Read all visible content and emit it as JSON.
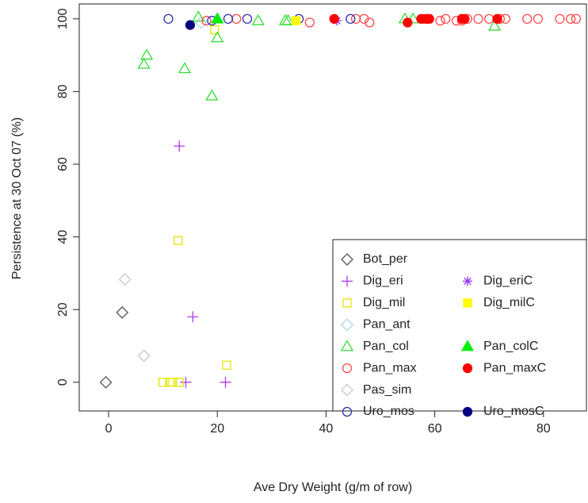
{
  "chart_data": {
    "type": "scatter",
    "xlabel": "Ave Dry Weight (g/m of row)",
    "ylabel": "Persistence at 30 Oct 07 (%)",
    "xlim": [
      -5.4,
      87.9
    ],
    "ylim": [
      -7.9,
      104.1
    ],
    "xticks": [
      0,
      20,
      40,
      60,
      80
    ],
    "yticks": [
      0,
      20,
      40,
      60,
      80,
      100
    ],
    "legend": "bottom-right",
    "series": [
      {
        "name": "Bot_per",
        "color": "#555555",
        "marker": "diamond",
        "x": [
          -0.5,
          2.5
        ],
        "values": [
          0,
          19.2
        ]
      },
      {
        "name": "Dig_eri",
        "color": "#b03ae8",
        "marker": "plus",
        "x": [
          13,
          15.5,
          14.2,
          21.5
        ],
        "values": [
          65,
          18,
          0,
          0
        ]
      },
      {
        "name": "Dig_mil",
        "color": "#e6e600",
        "marker": "square",
        "x": [
          12.8,
          21.7,
          10,
          11.2,
          11.8,
          13,
          19.5
        ],
        "values": [
          39,
          4.7,
          0,
          0,
          0,
          0,
          97
        ]
      },
      {
        "name": "Pan_ant",
        "color": "#a8d8ea",
        "marker": "diamond",
        "x": [
          17
        ],
        "values": [
          99
        ]
      },
      {
        "name": "Pan_col",
        "color": "#33dd33",
        "marker": "triangle",
        "x": [
          6.5,
          7,
          14,
          19,
          20,
          16.5,
          20,
          27.5,
          32.5,
          33,
          54.5,
          71,
          56
        ],
        "values": [
          87.5,
          90,
          86.3,
          78.8,
          94.8,
          100.5,
          100,
          99.5,
          99.5,
          99.5,
          100,
          98,
          100
        ]
      },
      {
        "name": "Pan_max",
        "color": "#ff4a4a",
        "marker": "circle",
        "x": [
          23.5,
          37,
          45.5,
          47,
          48,
          58,
          61,
          62,
          64,
          66,
          68,
          70,
          72,
          73,
          77,
          79,
          83,
          85,
          86,
          65,
          18
        ],
        "values": [
          100,
          99,
          100,
          100,
          99,
          100,
          99.5,
          100,
          99.5,
          100,
          100,
          100,
          100,
          100,
          100,
          100,
          100,
          100,
          100,
          99.5,
          99.5
        ]
      },
      {
        "name": "Pas_sim",
        "color": "#c8c8c8",
        "marker": "diamond",
        "x": [
          3,
          6.5
        ],
        "values": [
          28.3,
          7.3
        ]
      },
      {
        "name": "Uro_mos",
        "color": "#3030b0",
        "marker": "circle",
        "x": [
          11,
          19,
          22,
          25.5,
          35,
          44.5
        ],
        "values": [
          100,
          99.5,
          100,
          100,
          100,
          100
        ]
      },
      {
        "name": "Dig_eriC",
        "color": "#9933ff",
        "marker": "star",
        "x": [
          42
        ],
        "values": [
          99.5
        ]
      },
      {
        "name": "Dig_milC",
        "color": "#ffff00",
        "marker": "square-filled",
        "x": [
          34.5
        ],
        "values": [
          99.5
        ]
      },
      {
        "name": "Pan_colC",
        "color": "#00ee00",
        "marker": "triangle-filled",
        "x": [
          20
        ],
        "values": [
          100
        ]
      },
      {
        "name": "Pan_maxC",
        "color": "#ff0000",
        "marker": "circle-filled",
        "x": [
          41.5,
          55,
          57.5,
          58.5,
          59,
          65,
          65.5,
          71.5
        ],
        "values": [
          100,
          99,
          100,
          100,
          100,
          100,
          100,
          100
        ]
      },
      {
        "name": "Uro_mosC",
        "color": "#000080",
        "marker": "circle-filled",
        "x": [
          15
        ],
        "values": [
          98.3
        ]
      }
    ]
  }
}
